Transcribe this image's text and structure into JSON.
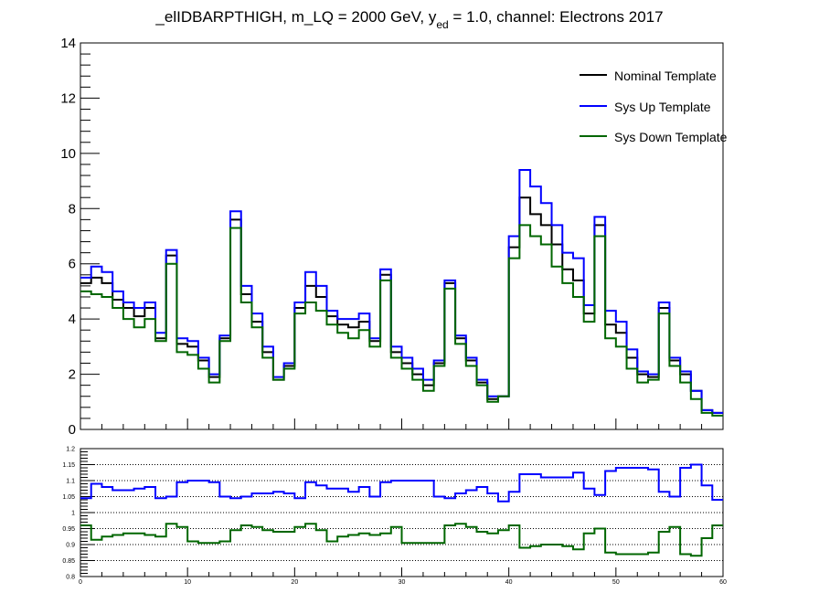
{
  "chart_data": [
    {
      "type": "line",
      "style": "step-histogram",
      "title": {
        "before": "_elIDBARPTHIGH, m_LQ = 2000 GeV, y",
        "subscript": "ed",
        "after": " = 1.0, channel: Electrons 2017"
      },
      "xlim": [
        0,
        60
      ],
      "ylim": [
        0,
        14
      ],
      "yticks": [
        0,
        2,
        4,
        6,
        8,
        10,
        12,
        14
      ],
      "legend_position": "top-right",
      "series": [
        {
          "name": "Nominal Template",
          "color": "#000000",
          "values": [
            5.3,
            5.5,
            5.3,
            4.7,
            4.4,
            4.1,
            4.4,
            3.3,
            6.3,
            3.1,
            3.0,
            2.5,
            1.9,
            3.3,
            7.6,
            4.9,
            3.9,
            2.8,
            1.8,
            2.3,
            4.4,
            5.2,
            4.8,
            4.1,
            3.8,
            3.7,
            3.9,
            3.2,
            5.6,
            2.8,
            2.4,
            2.0,
            1.6,
            2.4,
            5.3,
            3.3,
            2.5,
            1.7,
            1.1,
            1.2,
            6.6,
            8.4,
            7.8,
            7.4,
            6.7,
            5.8,
            5.4,
            4.2,
            7.4,
            3.8,
            3.5,
            2.6,
            2.0,
            1.9,
            4.4,
            2.5,
            2.0,
            1.4,
            0.7,
            0.6
          ]
        },
        {
          "name": "Sys Up Template",
          "color": "#0000ff",
          "values": [
            5.5,
            5.9,
            5.7,
            5.0,
            4.6,
            4.4,
            4.6,
            3.5,
            6.5,
            3.3,
            3.2,
            2.6,
            2.0,
            3.4,
            7.9,
            5.2,
            4.2,
            3.0,
            1.9,
            2.4,
            4.6,
            5.7,
            5.2,
            4.3,
            4.0,
            4.0,
            4.2,
            3.3,
            5.8,
            3.0,
            2.6,
            2.2,
            1.8,
            2.5,
            5.4,
            3.4,
            2.6,
            1.8,
            1.2,
            1.2,
            7.0,
            9.4,
            8.8,
            8.2,
            7.4,
            6.4,
            6.2,
            4.5,
            7.7,
            4.3,
            3.9,
            2.9,
            2.1,
            2.0,
            4.6,
            2.6,
            2.1,
            1.4,
            0.7,
            0.6
          ]
        },
        {
          "name": "Sys Down Template",
          "color": "#006600",
          "values": [
            5.0,
            4.9,
            4.8,
            4.4,
            4.0,
            3.7,
            4.0,
            3.2,
            6.0,
            2.8,
            2.7,
            2.2,
            1.7,
            3.2,
            7.3,
            4.6,
            3.7,
            2.6,
            1.8,
            2.2,
            4.2,
            4.6,
            4.3,
            3.8,
            3.5,
            3.3,
            3.6,
            3.0,
            5.4,
            2.6,
            2.2,
            1.8,
            1.4,
            2.3,
            5.1,
            3.1,
            2.3,
            1.6,
            1.0,
            1.2,
            6.2,
            7.4,
            7.0,
            6.7,
            5.9,
            5.3,
            4.8,
            3.9,
            7.0,
            3.3,
            3.0,
            2.2,
            1.7,
            1.8,
            4.2,
            2.3,
            1.7,
            1.1,
            0.6,
            0.5
          ]
        }
      ]
    },
    {
      "type": "line",
      "style": "step-histogram",
      "xlim": [
        0,
        60
      ],
      "ylim": [
        0.8,
        1.2
      ],
      "xticks": [
        "0",
        "10",
        "20",
        "30",
        "40",
        "50",
        "60"
      ],
      "yticks": [
        "0.8",
        "0.85",
        "0.9",
        "0.95",
        "1",
        "1.05",
        "1.1",
        "1.15",
        "1.2"
      ],
      "grid": "horizontal dotted",
      "series": [
        {
          "color": "#0000ff",
          "values": [
            1.045,
            1.09,
            1.08,
            1.07,
            1.07,
            1.075,
            1.08,
            1.045,
            1.05,
            1.095,
            1.1,
            1.1,
            1.095,
            1.05,
            1.045,
            1.05,
            1.06,
            1.06,
            1.065,
            1.06,
            1.045,
            1.095,
            1.085,
            1.075,
            1.075,
            1.065,
            1.08,
            1.05,
            1.095,
            1.1,
            1.1,
            1.1,
            1.1,
            1.05,
            1.045,
            1.06,
            1.07,
            1.08,
            1.06,
            1.035,
            1.065,
            1.12,
            1.12,
            1.11,
            1.11,
            1.11,
            1.125,
            1.075,
            1.055,
            1.13,
            1.14,
            1.14,
            1.14,
            1.135,
            1.065,
            1.05,
            1.14,
            1.15,
            1.085,
            1.04
          ]
        },
        {
          "color": "#006600",
          "values": [
            0.96,
            0.915,
            0.925,
            0.93,
            0.935,
            0.935,
            0.93,
            0.925,
            0.965,
            0.955,
            0.91,
            0.905,
            0.905,
            0.91,
            0.945,
            0.96,
            0.955,
            0.945,
            0.94,
            0.94,
            0.955,
            0.965,
            0.945,
            0.91,
            0.925,
            0.93,
            0.935,
            0.93,
            0.935,
            0.955,
            0.905,
            0.905,
            0.905,
            0.905,
            0.96,
            0.965,
            0.955,
            0.94,
            0.935,
            0.945,
            0.96,
            0.89,
            0.895,
            0.9,
            0.9,
            0.895,
            0.885,
            0.935,
            0.95,
            0.875,
            0.87,
            0.87,
            0.87,
            0.875,
            0.94,
            0.955,
            0.87,
            0.865,
            0.92,
            0.96
          ]
        }
      ]
    }
  ]
}
